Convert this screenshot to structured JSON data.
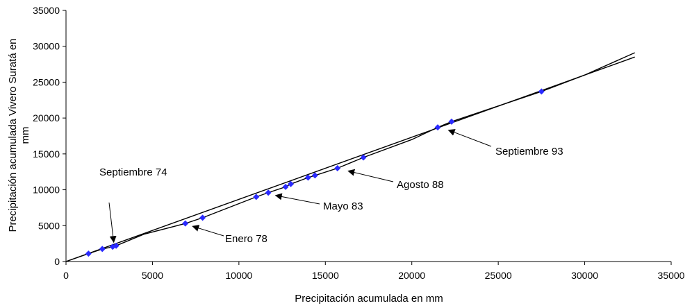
{
  "chart_data": {
    "type": "scatter",
    "xlabel": "Precipitación acumulada en mm",
    "ylabel": "Precipitación acumulada Vivero Suratá en mm",
    "xlim": [
      0,
      35000
    ],
    "ylim": [
      0,
      35000
    ],
    "x_ticks": [
      "0",
      "5000",
      "10000",
      "15000",
      "20000",
      "25000",
      "30000",
      "35000"
    ],
    "y_ticks": [
      "0",
      "5000",
      "10000",
      "15000",
      "20000",
      "25000",
      "30000",
      "35000"
    ],
    "grid": false,
    "legend": "none",
    "series": [
      {
        "type": "line",
        "color": "#000000",
        "values": [
          [
            0,
            0
          ],
          [
            32900,
            28500
          ]
        ]
      },
      {
        "type": "line",
        "color": "#000000",
        "values": [
          [
            0,
            0
          ],
          [
            1300,
            1100
          ],
          [
            2100,
            1750
          ],
          [
            2700,
            2050
          ],
          [
            2900,
            2200
          ],
          [
            4500,
            3800
          ],
          [
            6900,
            5300
          ],
          [
            7900,
            6100
          ],
          [
            11000,
            9000
          ],
          [
            11700,
            9600
          ],
          [
            12700,
            10400
          ],
          [
            13000,
            10800
          ],
          [
            14000,
            11700
          ],
          [
            14400,
            12000
          ],
          [
            15700,
            13000
          ],
          [
            17200,
            14500
          ],
          [
            20000,
            17000
          ],
          [
            21500,
            18700
          ],
          [
            22300,
            19500
          ],
          [
            27500,
            23700
          ],
          [
            30000,
            26000
          ],
          [
            32900,
            29100
          ]
        ]
      },
      {
        "type": "scatter",
        "color": "#2a2aff",
        "values": [
          [
            1300,
            1100
          ],
          [
            2100,
            1750
          ],
          [
            2700,
            2050
          ],
          [
            2900,
            2200
          ],
          [
            6900,
            5300
          ],
          [
            7900,
            6100
          ],
          [
            11000,
            9000
          ],
          [
            11700,
            9600
          ],
          [
            12700,
            10400
          ],
          [
            13000,
            10800
          ],
          [
            14000,
            11700
          ],
          [
            14400,
            12000
          ],
          [
            15700,
            13000
          ],
          [
            17200,
            14500
          ],
          [
            21500,
            18700
          ],
          [
            22300,
            19500
          ],
          [
            27500,
            23700
          ]
        ]
      }
    ],
    "annotations": [
      {
        "text": "Septiembre 74",
        "target": [
          2600,
          2100
        ]
      },
      {
        "text": "Enero 78",
        "target": [
          7000,
          5300
        ]
      },
      {
        "text": "Mayo 83",
        "target": [
          11800,
          9600
        ]
      },
      {
        "text": "Agosto 88",
        "target": [
          16000,
          13000
        ]
      },
      {
        "text": "Septiembre 93",
        "target": [
          21800,
          18700
        ]
      }
    ]
  }
}
